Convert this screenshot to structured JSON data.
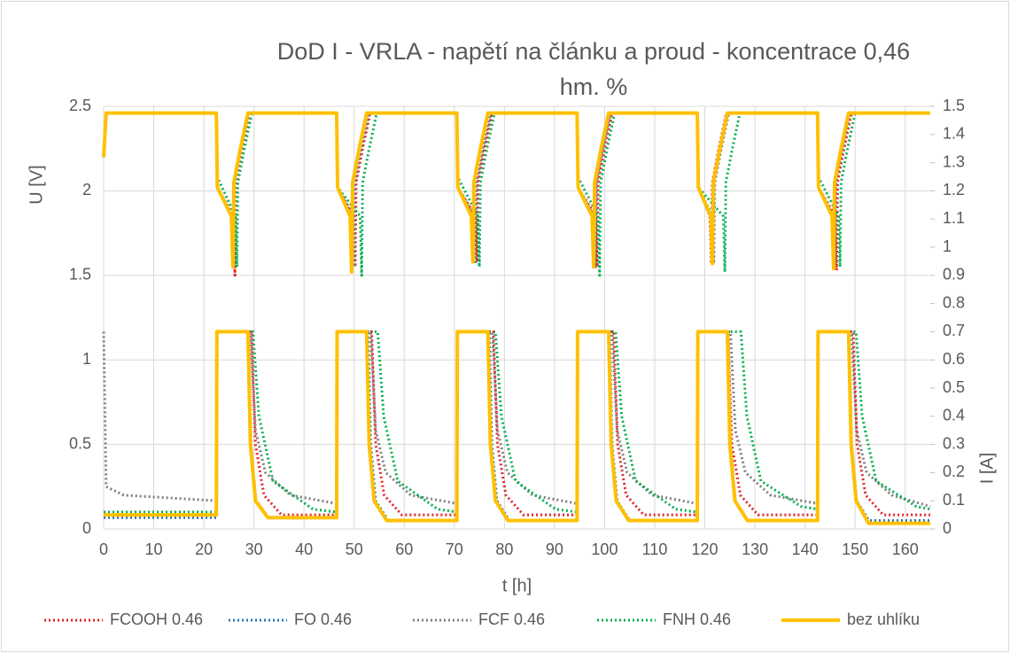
{
  "chart_data": {
    "type": "line",
    "title": "DoD I - VRLA - napětí na článku a proud - koncentrace 0,46 hm. %",
    "xlabel": "t [h]",
    "ylabel": "U [V]",
    "y2label": "I [A]",
    "xlim": [
      0,
      165
    ],
    "xticks": [
      0,
      10,
      20,
      30,
      40,
      50,
      60,
      70,
      80,
      90,
      100,
      110,
      120,
      130,
      140,
      150,
      160
    ],
    "ylim": [
      0,
      2.5
    ],
    "yticks": [
      0,
      0.5,
      1,
      1.5,
      2,
      2.5
    ],
    "y2lim": [
      0,
      1.5
    ],
    "y2ticks": [
      0,
      0.1,
      0.2,
      0.3,
      0.4,
      0.5,
      0.6,
      0.7,
      0.8,
      0.9,
      1,
      1.1,
      1.2,
      1.3,
      1.4,
      1.5
    ],
    "grid": true,
    "legend": "bottom",
    "series": [
      {
        "name": "FCOOH 0.46",
        "color": "#e3242b",
        "style": "dotted",
        "x": [
          0,
          0.5,
          22.5,
          22.7,
          25.9,
          26.2,
          26.4,
          27.7,
          29.2,
          46.5,
          46.7,
          49.9,
          50.2,
          50.4,
          51.7,
          53.2,
          70.5,
          70.7,
          74.2,
          74.5,
          74.7,
          76,
          77.5,
          94.5,
          94.7,
          98.2,
          98.5,
          98.7,
          100,
          101.5,
          118.5,
          118.7,
          121,
          121.3,
          121.5,
          122.8,
          124.3,
          142.5,
          142.7,
          146,
          146.3,
          146.5,
          147.8,
          149.3,
          165
        ],
        "values": [
          2.2,
          2.46,
          2.46,
          2.02,
          1.85,
          1.5,
          2.05,
          2.25,
          2.46,
          2.46,
          2.02,
          1.85,
          1.55,
          2.05,
          2.25,
          2.46,
          2.46,
          2.02,
          1.85,
          1.58,
          2.05,
          2.25,
          2.46,
          2.46,
          2.02,
          1.85,
          1.55,
          2.05,
          2.25,
          2.46,
          2.46,
          2.02,
          1.85,
          1.57,
          2.05,
          2.25,
          2.46,
          2.46,
          2.02,
          1.85,
          1.53,
          2.05,
          2.25,
          2.46,
          2.46
        ]
      },
      {
        "name": "FO 0.46",
        "color": "#2e75b6",
        "style": "dotted",
        "x": [
          0,
          0.5,
          22.5,
          22.7,
          25.6,
          25.9,
          26.1,
          27.4,
          28.9,
          46.5,
          46.7,
          49.5,
          49.8,
          50,
          51.3,
          52.8,
          70.5,
          70.7,
          73.7,
          74,
          74.2,
          75.5,
          77,
          94.5,
          94.7,
          97.7,
          98,
          98.2,
          99.5,
          101,
          118.5,
          118.7,
          121.3,
          121.6,
          121.8,
          123.1,
          124.6,
          142.5,
          142.7,
          145.5,
          145.8,
          146,
          147.3,
          148.8,
          165
        ],
        "values": [
          2.2,
          2.46,
          2.46,
          2.02,
          1.85,
          1.55,
          2.05,
          2.25,
          2.46,
          2.46,
          2.02,
          1.85,
          1.55,
          2.05,
          2.25,
          2.46,
          2.46,
          2.02,
          1.85,
          1.58,
          2.05,
          2.25,
          2.46,
          2.46,
          2.02,
          1.85,
          1.55,
          2.05,
          2.25,
          2.46,
          2.46,
          2.02,
          1.85,
          1.57,
          2.05,
          2.25,
          2.46,
          2.46,
          2.02,
          1.85,
          1.55,
          2.05,
          2.25,
          2.46,
          2.46
        ]
      },
      {
        "name": "FCF 0.46",
        "color": "#7f7f7f",
        "style": "dotted",
        "x": [
          0,
          0.5,
          22.5,
          22.7,
          25.7,
          26,
          26.2,
          27.5,
          29,
          46.5,
          46.7,
          49.7,
          50,
          50.2,
          51.5,
          53,
          70.5,
          70.7,
          74,
          74.3,
          74.5,
          75.8,
          77.3,
          94.5,
          94.7,
          97.9,
          98.2,
          98.4,
          99.7,
          101.2,
          118.5,
          118.7,
          121.5,
          121.8,
          122,
          123.3,
          124.8,
          142.5,
          142.7,
          145.7,
          146,
          146.2,
          147.5,
          149,
          165
        ],
        "values": [
          2.2,
          2.46,
          2.46,
          2.02,
          1.85,
          1.55,
          2.05,
          2.25,
          2.46,
          2.46,
          2.02,
          1.85,
          1.55,
          2.05,
          2.25,
          2.46,
          2.46,
          2.02,
          1.85,
          1.58,
          2.05,
          2.25,
          2.46,
          2.46,
          2.02,
          1.85,
          1.55,
          2.05,
          2.25,
          2.46,
          2.46,
          2.02,
          1.85,
          1.57,
          2.05,
          2.25,
          2.46,
          2.46,
          2.02,
          1.85,
          1.55,
          2.05,
          2.25,
          2.46,
          2.46
        ]
      },
      {
        "name": "FNH 0.46",
        "color": "#00b050",
        "style": "dotted",
        "x": [
          0,
          0.5,
          22.5,
          22.7,
          26.3,
          26.6,
          26.8,
          28.1,
          29.6,
          46.5,
          46.7,
          51.2,
          51.5,
          51.7,
          53,
          54.5,
          70.5,
          70.7,
          74.7,
          75,
          75.2,
          76.5,
          78,
          94.5,
          94.7,
          98.7,
          99,
          99.2,
          100.5,
          102,
          118.5,
          118.7,
          123.7,
          124,
          124.2,
          125.5,
          127,
          142.5,
          142.7,
          146.7,
          147,
          147.2,
          148.5,
          150,
          165
        ],
        "values": [
          2.2,
          2.46,
          2.46,
          2.08,
          1.85,
          1.55,
          2.05,
          2.25,
          2.46,
          2.46,
          2.02,
          1.85,
          1.5,
          2.05,
          2.25,
          2.46,
          2.46,
          2.08,
          1.85,
          1.55,
          2.05,
          2.25,
          2.46,
          2.46,
          2.08,
          1.85,
          1.5,
          2.05,
          2.25,
          2.46,
          2.46,
          2.02,
          1.85,
          1.52,
          2.05,
          2.25,
          2.46,
          2.46,
          2.08,
          1.85,
          1.55,
          2.05,
          2.25,
          2.46,
          2.46
        ]
      },
      {
        "name": "bez uhlíku",
        "color": "#ffc000",
        "style": "solid",
        "x": [
          0,
          0.5,
          22.5,
          22.7,
          25.5,
          25.8,
          26,
          27.3,
          28.8,
          46.5,
          46.7,
          49.2,
          49.5,
          49.7,
          51,
          52.5,
          70.5,
          70.7,
          73.4,
          73.7,
          73.9,
          75.2,
          76.7,
          94.5,
          94.7,
          97.5,
          97.8,
          98,
          99.3,
          100.8,
          118.5,
          118.7,
          121.2,
          121.5,
          121.7,
          123,
          124.5,
          142.5,
          142.7,
          145.4,
          145.7,
          145.9,
          147.2,
          148.7,
          165
        ],
        "values": [
          2.2,
          2.46,
          2.46,
          2.02,
          1.85,
          1.55,
          2.05,
          2.25,
          2.46,
          2.46,
          2.02,
          1.85,
          1.52,
          2.05,
          2.25,
          2.46,
          2.46,
          2.02,
          1.85,
          1.58,
          2.05,
          2.25,
          2.46,
          2.46,
          2.02,
          1.85,
          1.55,
          2.05,
          2.25,
          2.46,
          2.46,
          2.02,
          1.85,
          1.57,
          2.05,
          2.25,
          2.46,
          2.46,
          2.02,
          1.85,
          1.54,
          2.05,
          2.25,
          2.46,
          2.46
        ]
      },
      {
        "color": "#7f7f7f",
        "style": "dotted",
        "axis": "y2",
        "x": [
          0,
          0.5,
          4,
          22.5,
          22.6,
          29.3,
          30.3,
          32.3,
          37.3,
          46.5,
          46.6,
          53.3,
          54.3,
          56.3,
          61.3,
          70.5,
          70.6,
          77.6,
          78.6,
          80.6,
          85.6,
          94.5,
          94.6,
          101.5,
          102.5,
          104.5,
          109.5,
          118.5,
          118.6,
          125.1,
          126.1,
          128.1,
          133.1,
          142.5,
          142.6,
          149.3,
          150.3,
          152.3,
          157.3,
          165
        ],
        "values": [
          0.7,
          0.15,
          0.12,
          0.1,
          0.7,
          0.7,
          0.35,
          0.2,
          0.12,
          0.09,
          0.7,
          0.7,
          0.35,
          0.2,
          0.12,
          0.09,
          0.7,
          0.7,
          0.35,
          0.2,
          0.12,
          0.09,
          0.7,
          0.7,
          0.35,
          0.2,
          0.12,
          0.09,
          0.7,
          0.7,
          0.35,
          0.2,
          0.12,
          0.09,
          0.7,
          0.7,
          0.35,
          0.2,
          0.12,
          0.08
        ]
      },
      {
        "color": "#00b050",
        "style": "dotted",
        "axis": "y2",
        "x": [
          0,
          22.5,
          22.6,
          29.8,
          31,
          33.8,
          41.8,
          46.5,
          46.6,
          54.7,
          55.9,
          58.7,
          66.7,
          70.5,
          70.6,
          78.2,
          79.4,
          82.2,
          90.2,
          94.5,
          94.6,
          102.2,
          103.4,
          106.2,
          114.2,
          118.5,
          118.6,
          127.2,
          128.4,
          131.2,
          139.2,
          142.5,
          142.6,
          150.2,
          151.4,
          154.2,
          162.2,
          165
        ],
        "values": [
          0.06,
          0.06,
          0.7,
          0.7,
          0.4,
          0.17,
          0.07,
          0.06,
          0.7,
          0.7,
          0.4,
          0.17,
          0.07,
          0.06,
          0.7,
          0.7,
          0.4,
          0.17,
          0.07,
          0.06,
          0.7,
          0.7,
          0.4,
          0.17,
          0.07,
          0.06,
          0.7,
          0.7,
          0.4,
          0.17,
          0.08,
          0.07,
          0.7,
          0.7,
          0.4,
          0.17,
          0.08,
          0.07
        ]
      },
      {
        "color": "#e3242b",
        "style": "dotted",
        "axis": "y2",
        "x": [
          0,
          22.5,
          22.6,
          29.5,
          30.3,
          32,
          35.5,
          46.5,
          46.6,
          53.5,
          54.3,
          56,
          59.5,
          70.5,
          70.6,
          77.8,
          78.6,
          80.3,
          83.8,
          94.5,
          94.6,
          101.8,
          102.6,
          104.3,
          107.8,
          118.5,
          118.6,
          124.6,
          125.4,
          127.1,
          130.6,
          142.5,
          142.6,
          149.6,
          150.4,
          152.1,
          155.6,
          165
        ],
        "values": [
          0.05,
          0.05,
          0.7,
          0.7,
          0.3,
          0.12,
          0.05,
          0.05,
          0.7,
          0.7,
          0.3,
          0.12,
          0.05,
          0.05,
          0.7,
          0.7,
          0.3,
          0.12,
          0.05,
          0.05,
          0.7,
          0.7,
          0.3,
          0.12,
          0.05,
          0.05,
          0.7,
          0.7,
          0.3,
          0.12,
          0.05,
          0.05,
          0.7,
          0.7,
          0.3,
          0.12,
          0.05,
          0.05
        ]
      },
      {
        "color": "#2e75b6",
        "style": "dotted",
        "axis": "y2",
        "x": [
          0,
          22.5,
          22.6,
          28.9,
          29.4,
          30.4,
          32.9,
          46.5,
          46.6,
          52.8,
          53.3,
          54.3,
          56.8,
          70.5,
          70.6,
          77,
          77.5,
          78.5,
          81,
          94.5,
          94.6,
          101,
          101.5,
          102.5,
          105,
          118.5,
          118.6,
          124.6,
          125.1,
          126.1,
          128.6,
          142.5,
          142.6,
          148.8,
          149.3,
          150.3,
          152.8,
          165
        ],
        "values": [
          0.04,
          0.04,
          0.7,
          0.7,
          0.3,
          0.1,
          0.04,
          0.04,
          0.7,
          0.7,
          0.3,
          0.1,
          0.03,
          0.03,
          0.7,
          0.7,
          0.3,
          0.1,
          0.03,
          0.03,
          0.7,
          0.7,
          0.3,
          0.1,
          0.03,
          0.03,
          0.7,
          0.7,
          0.3,
          0.1,
          0.03,
          0.03,
          0.7,
          0.7,
          0.3,
          0.1,
          0.03,
          0.03
        ]
      },
      {
        "color": "#ffc000",
        "style": "solid",
        "axis": "y2",
        "x": [
          0,
          22.5,
          22.6,
          28.8,
          29.3,
          30.3,
          32.8,
          46.5,
          46.6,
          52.5,
          53,
          54,
          56.5,
          70.5,
          70.6,
          76.7,
          77.2,
          78.2,
          80.7,
          94.5,
          94.6,
          100.8,
          101.3,
          102.3,
          104.8,
          118.5,
          118.6,
          124.5,
          125,
          126,
          128.5,
          142.5,
          142.6,
          148.7,
          149.2,
          150.2,
          152.7,
          165
        ],
        "values": [
          0.05,
          0.05,
          0.7,
          0.7,
          0.3,
          0.1,
          0.04,
          0.04,
          0.7,
          0.7,
          0.3,
          0.1,
          0.03,
          0.03,
          0.7,
          0.7,
          0.3,
          0.1,
          0.03,
          0.03,
          0.7,
          0.7,
          0.3,
          0.1,
          0.03,
          0.03,
          0.7,
          0.7,
          0.3,
          0.1,
          0.03,
          0.03,
          0.7,
          0.7,
          0.3,
          0.1,
          0.02,
          0.02
        ]
      }
    ]
  }
}
